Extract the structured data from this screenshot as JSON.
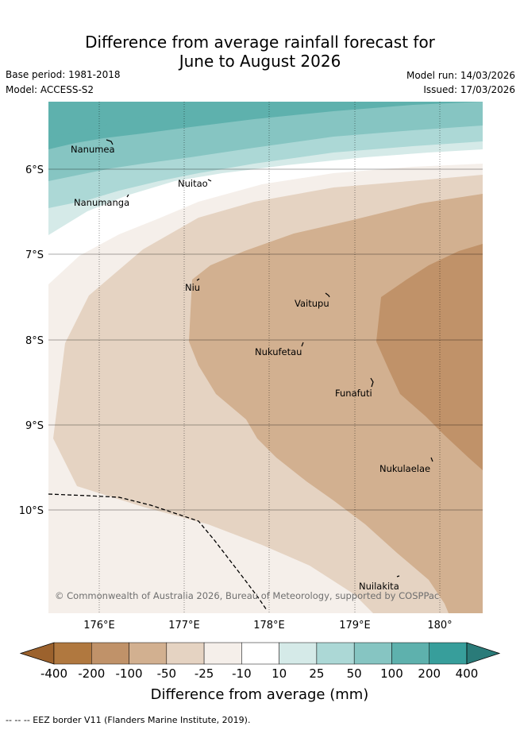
{
  "header": {
    "title_line1": "Difference from average rainfall forecast for",
    "title_line2": "June to August 2026",
    "base_period": "Base period: 1981-2018",
    "model": "Model: ACCESS-S2",
    "model_run": "Model run: 14/03/2026",
    "issued": "Issued: 17/03/2026"
  },
  "map": {
    "lat_labels": [
      "6°S",
      "7°S",
      "8°S",
      "9°S",
      "10°S"
    ],
    "lon_labels": [
      "176°E",
      "177°E",
      "178°E",
      "179°E",
      "180°"
    ],
    "islands": [
      {
        "name": "Nanumea"
      },
      {
        "name": "Nanumanga"
      },
      {
        "name": "Nuitao"
      },
      {
        "name": "Niu"
      },
      {
        "name": "Vaitupu"
      },
      {
        "name": "Nukufetau"
      },
      {
        "name": "Funafuti"
      },
      {
        "name": "Nukulaelae"
      },
      {
        "name": "Nuilakita"
      }
    ],
    "copyright": "© Commonwealth of Australia 2026, Bureau of Meteorology, supported by COSPPac"
  },
  "legend": {
    "ticks": [
      "-400",
      "-200",
      "-100",
      "-50",
      "-25",
      "-10",
      "10",
      "25",
      "50",
      "100",
      "200",
      "400"
    ],
    "colors": [
      "#9c622d",
      "#b0783f",
      "#c09269",
      "#d2b090",
      "#e5d3c2",
      "#f5efea",
      "#ffffff",
      "#d5eae8",
      "#acd8d6",
      "#86c5c2",
      "#5eb1ad",
      "#379e9b",
      "#2a7b79"
    ],
    "label": "Difference from average (mm)"
  },
  "footnote": "--  --  -- EEZ border V11 (Flanders Marine Institute, 2019)."
}
